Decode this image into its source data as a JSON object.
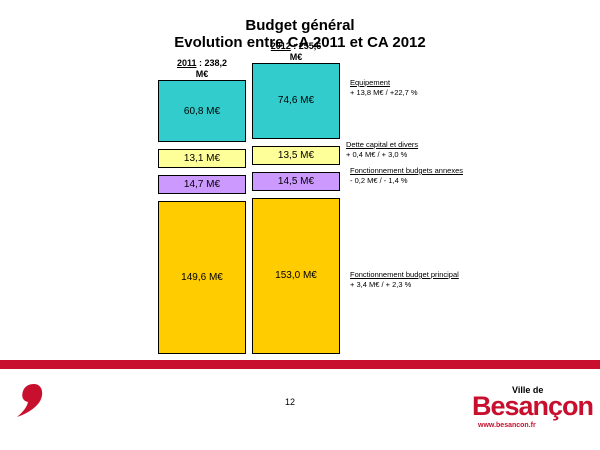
{
  "title_line1": "Budget général",
  "title_line2": "Evolution entre CA 2011 et CA 2012",
  "chart_data": {
    "type": "bar",
    "stacked": true,
    "categories": [
      "2011",
      "2012"
    ],
    "totals": [
      {
        "year": "2011",
        "sep": " : ",
        "value": "238,2",
        "unit": "M€"
      },
      {
        "year": "2012",
        "sep": " : ",
        "value": "255,6",
        "unit": "M€"
      }
    ],
    "series": [
      {
        "name": "Fonctionnement budget principal",
        "values": [
          149.6,
          153.0
        ],
        "labels": [
          "149,6 M€",
          "153,0 M€"
        ],
        "color": "#ffcc00",
        "delta": "+ 3,4 M€  /  + 2,3 %"
      },
      {
        "name": "Fonctionnement budgets annexes",
        "values": [
          14.7,
          14.5
        ],
        "labels": [
          "14,7 M€",
          "14,5 M€"
        ],
        "color": "#cc99ff",
        "delta": "- 0,2 M€  /  - 1,4 %"
      },
      {
        "name": "Dette capital et divers",
        "values": [
          13.1,
          13.5
        ],
        "labels": [
          "13,1 M€",
          "13,5 M€"
        ],
        "color": "#ffff99",
        "delta": "+ 0,4 M€  /  + 3,0 %"
      },
      {
        "name": "Equipement",
        "values": [
          60.8,
          74.6
        ],
        "labels": [
          "60,8 M€",
          "74,6 M€"
        ],
        "color": "#33cccc",
        "delta": "+ 13,8 M€  /  +22,7 %"
      }
    ]
  },
  "page_number": "12",
  "logo": {
    "small": "Ville de",
    "big": "Besançon",
    "url": "www.besancon.fr"
  },
  "colors": {
    "accent_red": "#c8102e"
  }
}
